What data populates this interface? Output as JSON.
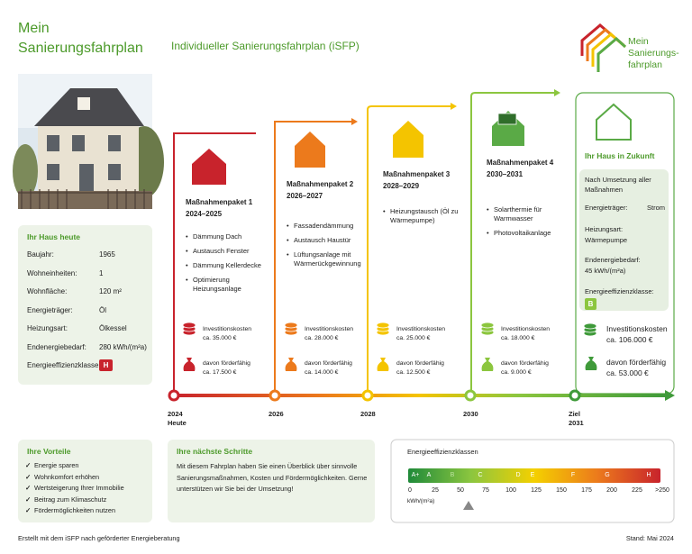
{
  "header": {
    "title_lines": [
      "Mein",
      "Sanierungsfahrplan"
    ],
    "subtitle": "Individueller Sanierungsfahrplan (iSFP)",
    "logo_lines": [
      "Mein",
      "Sanierungs-",
      "fahrplan"
    ]
  },
  "house_today": {
    "title": "Ihr Haus heute",
    "rows": [
      [
        "Baujahr:",
        "1965"
      ],
      [
        "Wohneinheiten:",
        "1"
      ],
      [
        "Wohnfläche:",
        "120 m²"
      ],
      [
        "Energieträger:",
        "Öl"
      ],
      [
        "Heizungsart:",
        "Ölkessel"
      ],
      [
        "Endenergiebedarf:",
        "280 kWh/(m²a)"
      ],
      [
        "Energieeffizienzklasse:",
        "H"
      ]
    ]
  },
  "packages": [
    {
      "label": "Maßnahmenpaket 1",
      "years": "2024–2025",
      "measures": [
        "Dämmung Dach",
        "Austausch Fenster",
        "Dämmung Kellerdecke",
        "Optimierung Heizungsanlage"
      ],
      "cost_label": "Investitionskosten",
      "cost": "ca. 35.000 €",
      "funding_label": "davon förderfähig",
      "funding": "ca. 17.500 €"
    },
    {
      "label": "Maßnahmenpaket 2",
      "years": "2026–2027",
      "measures": [
        "Fassadendämmung",
        "Austausch Haustür",
        "Lüftungsanlage mit Wärmerückgewinnung"
      ],
      "cost_label": "Investitionskosten",
      "cost": "ca. 28.000 €",
      "funding_label": "davon förderfähig",
      "funding": "ca. 14.000 €"
    },
    {
      "label": "Maßnahmenpaket 3",
      "years": "2028–2029",
      "measures": [
        "Heizungstausch (Öl zu Wärmepumpe)"
      ],
      "cost_label": "Investitionskosten",
      "cost": "ca. 25.000 €",
      "funding_label": "davon förderfähig",
      "funding": "ca. 12.500 €"
    },
    {
      "label": "Maßnahmenpaket 4",
      "years": "2030–2031",
      "measures": [
        "Solarthermie für Warmwasser",
        "Photovoltaikanlage"
      ],
      "cost_label": "Investitionskosten",
      "cost": "ca. 18.000 €",
      "funding_label": "davon förderfähig",
      "funding": "ca. 9.000 €"
    }
  ],
  "future": {
    "title": "Ihr Haus in Zukunft",
    "heading": "Nach Umsetzung aller Maßnahmen",
    "energy_label": "Energieträger:",
    "energy": "Strom",
    "heating_label": "Heizungsart:",
    "heating": "Wärmepumpe",
    "demand_label": "Endenergiebedarf:",
    "demand": "45 kWh/(m²a)",
    "class_label": "Energieeffizienzklasse:",
    "class": "B",
    "cost_label": "Investitionskosten",
    "cost": "ca. 106.000 €",
    "funding_label": "davon förderfähig",
    "funding": "ca. 53.000 €"
  },
  "timeline": {
    "markers": [
      [
        "2024",
        "Heute"
      ],
      [
        "2026"
      ],
      [
        "2028"
      ],
      [
        "2030"
      ],
      [
        "Ziel",
        "2031"
      ]
    ]
  },
  "advantages": {
    "title": "Ihre Vorteile",
    "items": [
      "Energie sparen",
      "Wohnkomfort erhöhen",
      "Wertsteigerung Ihrer Immobilie",
      "Beitrag zum Klimaschutz",
      "Fördermöglichkeiten nutzen"
    ]
  },
  "next_steps": {
    "title": "Ihre nächste Schritte",
    "text": "Mit diesem Fahrplan haben Sie einen Überblick über sinnvolle Sanierungsmaßnahmen, Kosten und Fördermöglichkeiten. Gerne unterstützen wir Sie bei der Umsetzung!"
  },
  "scale": {
    "title": "Energieeffizienzklassen",
    "classes": [
      "A+",
      "A",
      "B",
      "C",
      "D",
      "E",
      "F",
      "G",
      "H"
    ],
    "ticks": [
      "0",
      "25",
      "50",
      "75",
      "100",
      "125",
      "150",
      "175",
      "200",
      "225",
      ">250"
    ],
    "unit": "kWh/(m²a)"
  },
  "footer": {
    "left": "Erstellt mit dem iSFP nach geförderter Energieberatung",
    "right": "Stand: Mai 2024"
  }
}
